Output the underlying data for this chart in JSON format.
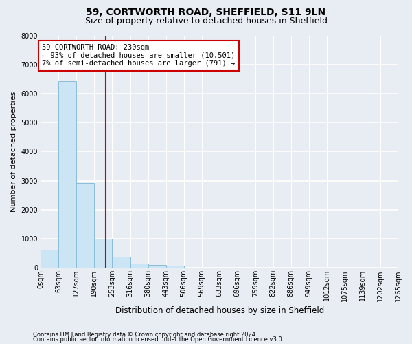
{
  "title1": "59, CORTWORTH ROAD, SHEFFIELD, S11 9LN",
  "title2": "Size of property relative to detached houses in Sheffield",
  "xlabel": "Distribution of detached houses by size in Sheffield",
  "ylabel": "Number of detached properties",
  "footer1": "Contains HM Land Registry data © Crown copyright and database right 2024.",
  "footer2": "Contains public sector information licensed under the Open Government Licence v3.0.",
  "bin_labels": [
    "0sqm",
    "63sqm",
    "127sqm",
    "190sqm",
    "253sqm",
    "316sqm",
    "380sqm",
    "443sqm",
    "506sqm",
    "569sqm",
    "633sqm",
    "696sqm",
    "759sqm",
    "822sqm",
    "886sqm",
    "949sqm",
    "1012sqm",
    "1075sqm",
    "1139sqm",
    "1202sqm",
    "1265sqm"
  ],
  "bar_values": [
    620,
    6420,
    2910,
    1000,
    380,
    150,
    100,
    80,
    0,
    0,
    0,
    0,
    0,
    0,
    0,
    0,
    0,
    0,
    0,
    0
  ],
  "bar_color": "#cce5f5",
  "bar_edge_color": "#8bbdd9",
  "vline_color": "#cc0000",
  "vline_x": 3.651,
  "annotation_line1": "59 CORTWORTH ROAD: 230sqm",
  "annotation_line2": "← 93% of detached houses are smaller (10,501)",
  "annotation_line3": "7% of semi-detached houses are larger (791) →",
  "annotation_box_edge_color": "#cc0000",
  "ylim": [
    0,
    8000
  ],
  "yticks": [
    0,
    1000,
    2000,
    3000,
    4000,
    5000,
    6000,
    7000,
    8000
  ],
  "bg_color": "#e8edf3",
  "plot_bg_color": "#e8edf3",
  "grid_color": "#ffffff",
  "title_fontsize": 10,
  "subtitle_fontsize": 9,
  "axis_label_fontsize": 8,
  "tick_fontsize": 7,
  "footer_fontsize": 6,
  "annot_fontsize": 7.5
}
